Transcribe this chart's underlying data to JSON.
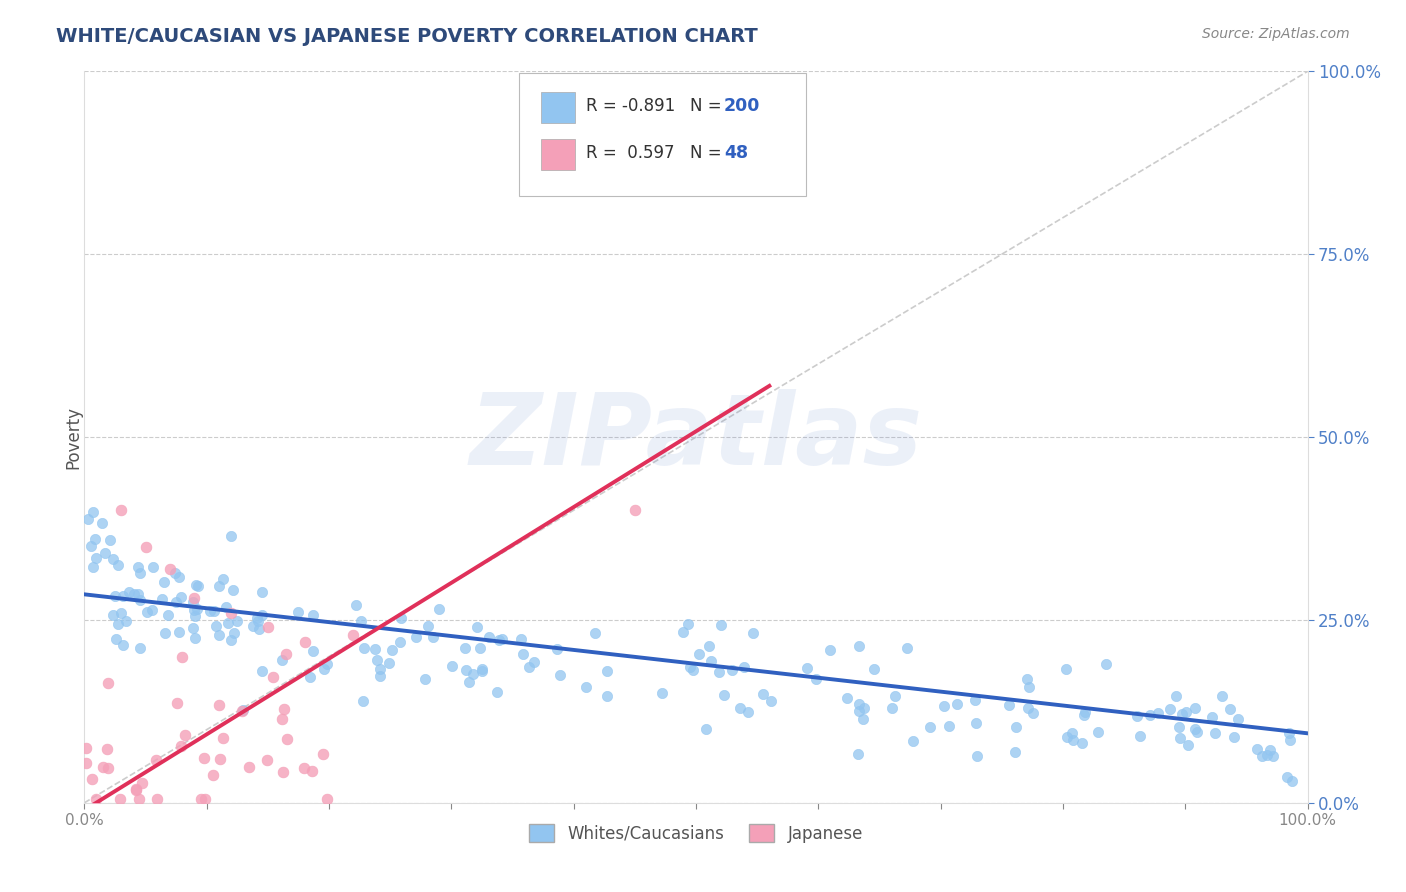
{
  "title": "WHITE/CAUCASIAN VS JAPANESE POVERTY CORRELATION CHART",
  "source_text": "Source: ZipAtlas.com",
  "ylabel": "Poverty",
  "watermark": "ZIPatlas",
  "xmin": 0.0,
  "xmax": 1.0,
  "ymin": 0.0,
  "ymax": 1.0,
  "blue_R": -0.891,
  "blue_N": 200,
  "pink_R": 0.597,
  "pink_N": 48,
  "blue_color": "#92C5F0",
  "pink_color": "#F4A0B8",
  "blue_line_color": "#3060C0",
  "pink_line_color": "#E0305A",
  "title_color": "#2E4A7A",
  "legend_N_color": "#3060C0",
  "right_axis_color": "#5080C8",
  "background_color": "#FFFFFF",
  "legend_label_blue": "Whites/Caucasians",
  "legend_label_pink": "Japanese",
  "blue_seed": 42,
  "pink_seed": 99
}
